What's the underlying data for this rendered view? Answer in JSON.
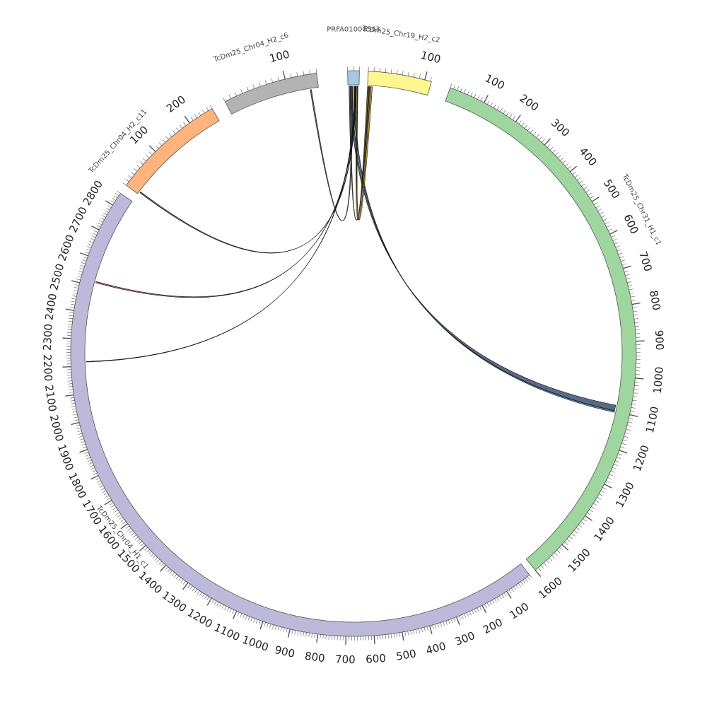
{
  "chart_data": {
    "type": "circos",
    "unit": "tick labels in the printed units",
    "segments": [
      {
        "id": "s_main",
        "name": "PRFA01000543",
        "length": 20,
        "color": "#a6c8e3",
        "start_deg": -1.2,
        "end_deg": 1.2,
        "label": "PRFA01000543",
        "ticks": []
      },
      {
        "id": "s_c2",
        "name": "TcDm25_Chr19_H2_c2",
        "length": 112,
        "color": "#fff68f",
        "start_deg": 3.0,
        "end_deg": 16.0,
        "label": "TcDm25_Chr19_H2_c2",
        "ticks": [
          100
        ]
      },
      {
        "id": "s_c1",
        "name": "TcDm25_Chr31_H1_c1",
        "length": 1600,
        "color": "#9fd59f",
        "start_deg": 20.0,
        "end_deg": 140.0,
        "label": "TcDm25_Chr31_H1_c1",
        "ticks": [
          100,
          200,
          300,
          400,
          500,
          600,
          700,
          800,
          900,
          1000,
          1100,
          1200,
          1300,
          1400,
          1500,
          1600
        ]
      },
      {
        "id": "s_chr04h1",
        "name": "TcDm25_Chr04_H1_c1",
        "length": 2850,
        "color": "#bdb9da",
        "start_deg": 141.5,
        "end_deg": 304.5,
        "label": "TcDm25_Chr04_H1_c1",
        "ticks": [
          100,
          200,
          300,
          400,
          500,
          600,
          700,
          800,
          900,
          1000,
          1100,
          1200,
          1300,
          1400,
          1500,
          1600,
          1700,
          1800,
          1900,
          2000,
          2100,
          2200,
          2300,
          2400,
          2500,
          2600,
          2700,
          2800
        ]
      },
      {
        "id": "s_c11",
        "name": "TcDm25_Chr04_H2_c11",
        "length": 260,
        "color": "#fdb47c",
        "start_deg": 306.5,
        "end_deg": 330.0,
        "label": "TcDm25_Chr04_H2_c11",
        "ticks": [
          100,
          200
        ]
      },
      {
        "id": "s_chr04h2",
        "name": "TcDm25_Chr04_H2",
        "length": 150,
        "color": "#b3b3b3",
        "start_deg": 333.0,
        "end_deg": 352.5,
        "label": "TcDm25_Chr04_H2_c6",
        "ticks": [
          100
        ]
      }
    ],
    "links": [
      {
        "from": "s_main",
        "from_pos": [
          4,
          8
        ],
        "to": "s_c1",
        "to_pos": [
          1082,
          1098
        ],
        "color": "#1f3a5c"
      },
      {
        "from": "s_main",
        "from_pos": [
          10,
          12
        ],
        "to": "s_c1",
        "to_pos": [
          1099,
          1103
        ],
        "color": "#3a6f99"
      },
      {
        "from": "s_main",
        "from_pos": [
          12,
          13
        ],
        "to": "s_chr04h1",
        "to_pos": [
          2215,
          2217
        ],
        "color": "#333333"
      },
      {
        "from": "s_main",
        "from_pos": [
          13,
          14
        ],
        "to": "s_chr04h1",
        "to_pos": [
          2515,
          2520
        ],
        "color": "#8b3a2a"
      },
      {
        "from": "s_main",
        "from_pos": [
          14,
          15
        ],
        "to": "s_c11",
        "to_pos": [
          5,
          8
        ],
        "color": "#333333"
      },
      {
        "from": "s_main",
        "from_pos": [
          6,
          8
        ],
        "to": "s_chr04h2",
        "to_pos": [
          136,
          138
        ],
        "color": "#333333"
      },
      {
        "from": "s_main",
        "from_pos": [
          15,
          17
        ],
        "to": "s_c2",
        "to_pos": [
          0,
          6
        ],
        "color": "#7a5c12"
      },
      {
        "from": "s_main",
        "from_pos": [
          17,
          18
        ],
        "to": "s_c2",
        "to_pos": [
          6,
          9
        ],
        "color": "#b08a00"
      },
      {
        "from": "s_main",
        "from_pos": [
          2,
          4
        ],
        "to": "s_c2",
        "to_pos": [
          2,
          4
        ],
        "color": "#2a2a2a"
      }
    ]
  }
}
